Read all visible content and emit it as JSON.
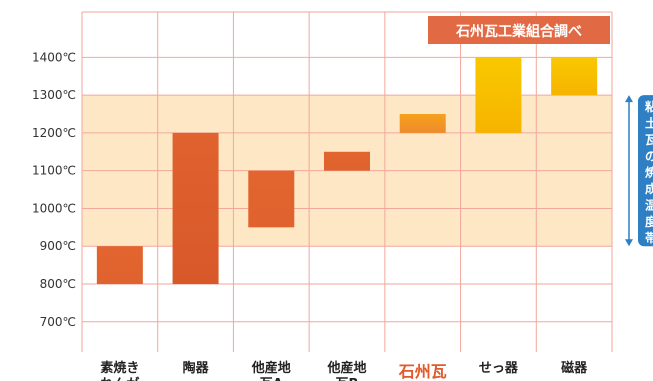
{
  "chart_data": {
    "type": "bar",
    "subtype": "floating-range",
    "source_note": "石州瓦工業組合調べ",
    "y_unit_suffix": "℃",
    "ylim": [
      620,
      1520
    ],
    "y_ticks": [
      700,
      800,
      900,
      1000,
      1100,
      1200,
      1300,
      1400
    ],
    "grid": true,
    "band": {
      "low": 900,
      "high": 1300,
      "label": "粘土瓦の焼成温度帯"
    },
    "highlight_category": "石州瓦",
    "categories": [
      {
        "label": "素焼き",
        "label2": "れんが",
        "low": 800,
        "high": 900
      },
      {
        "label": "陶器",
        "label2": "",
        "low": 800,
        "high": 1200
      },
      {
        "label": "他産地",
        "label2": "瓦A",
        "low": 950,
        "high": 1100
      },
      {
        "label": "他産地",
        "label2": "瓦B",
        "low": 1100,
        "high": 1150
      },
      {
        "label": "石州瓦",
        "label2": "",
        "low": 1200,
        "high": 1250
      },
      {
        "label": "せっ器",
        "label2": "",
        "low": 1200,
        "high": 1400
      },
      {
        "label": "磁器",
        "label2": "",
        "low": 1300,
        "high": 1400
      }
    ],
    "colors": {
      "grid": "#f2a79c",
      "band": "#fde7c4",
      "bar_red": "#e0622e",
      "bar_orange": "#f0862a",
      "bar_yellow": "#f8c300",
      "source_box": "#e16a45",
      "band_marker": "#2e7fc4"
    }
  }
}
